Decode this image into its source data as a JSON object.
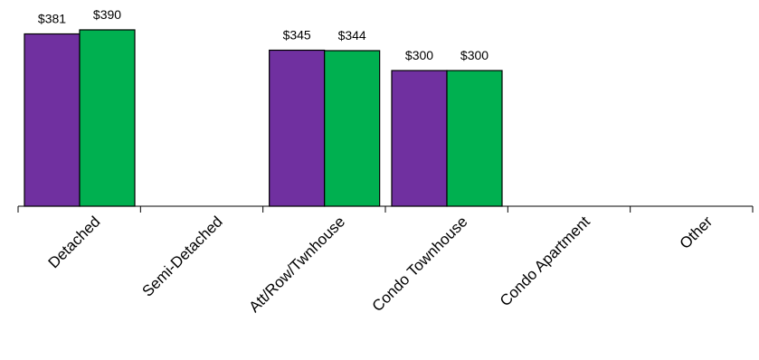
{
  "chart_data": {
    "type": "bar",
    "categories": [
      "Detached",
      "Semi-Detached",
      "Att/Row/Twnhouse",
      "Condo Townhouse",
      "Condo Apartment",
      "Other"
    ],
    "series": [
      {
        "color": "#7030a0",
        "values": [
          381,
          null,
          345,
          300,
          null,
          null
        ],
        "labels": [
          "$381",
          "",
          "$345",
          "$300",
          "",
          ""
        ]
      },
      {
        "color": "#00b050",
        "values": [
          390,
          null,
          344,
          300,
          null,
          null
        ],
        "labels": [
          "$390",
          "",
          "$344",
          "$300",
          "",
          ""
        ]
      }
    ],
    "ylim": [
      0,
      400
    ],
    "grid": false,
    "legend": "none"
  }
}
